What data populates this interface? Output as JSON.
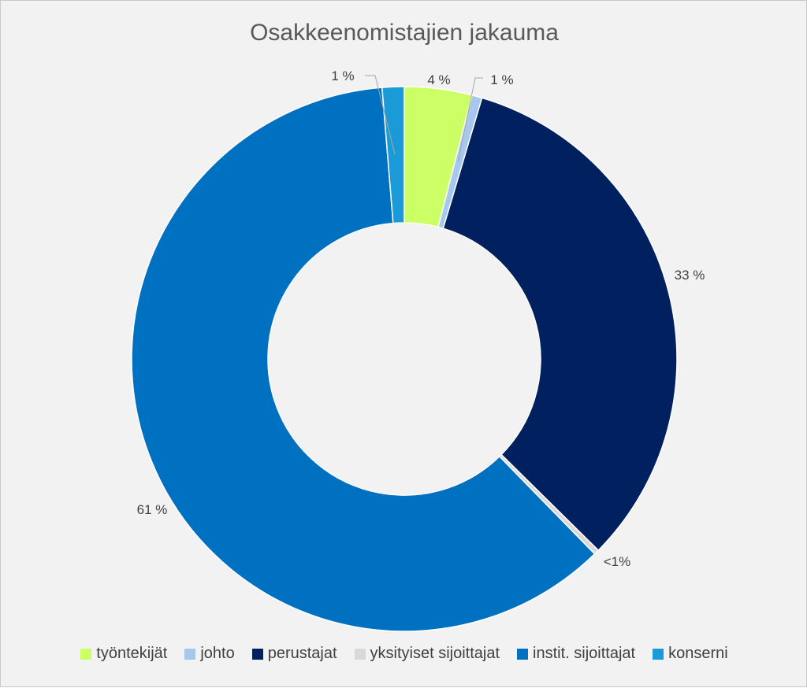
{
  "chart_data": {
    "type": "pie",
    "variant": "donut",
    "title": "Osakkeenomistajien jakauma",
    "series": [
      {
        "name": "työntekijät",
        "value": 4,
        "label": "4 %",
        "color": "#ccff66"
      },
      {
        "name": "johto",
        "value": 0.6,
        "label": "1 %",
        "color": "#a6c8ec"
      },
      {
        "name": "perustajat",
        "value": 32.8,
        "label": "33 %",
        "color": "#002060"
      },
      {
        "name": "yksityiset sijoittajat",
        "value": 0.3,
        "label": "<1%",
        "color": "#d9d9d9"
      },
      {
        "name": "instit. sijoittajat",
        "value": 61,
        "label": "61 %",
        "color": "#0070c0"
      },
      {
        "name": "konserni",
        "value": 1.3,
        "label": "1 %",
        "color": "#1a9ad6"
      }
    ],
    "legend_position": "bottom"
  }
}
